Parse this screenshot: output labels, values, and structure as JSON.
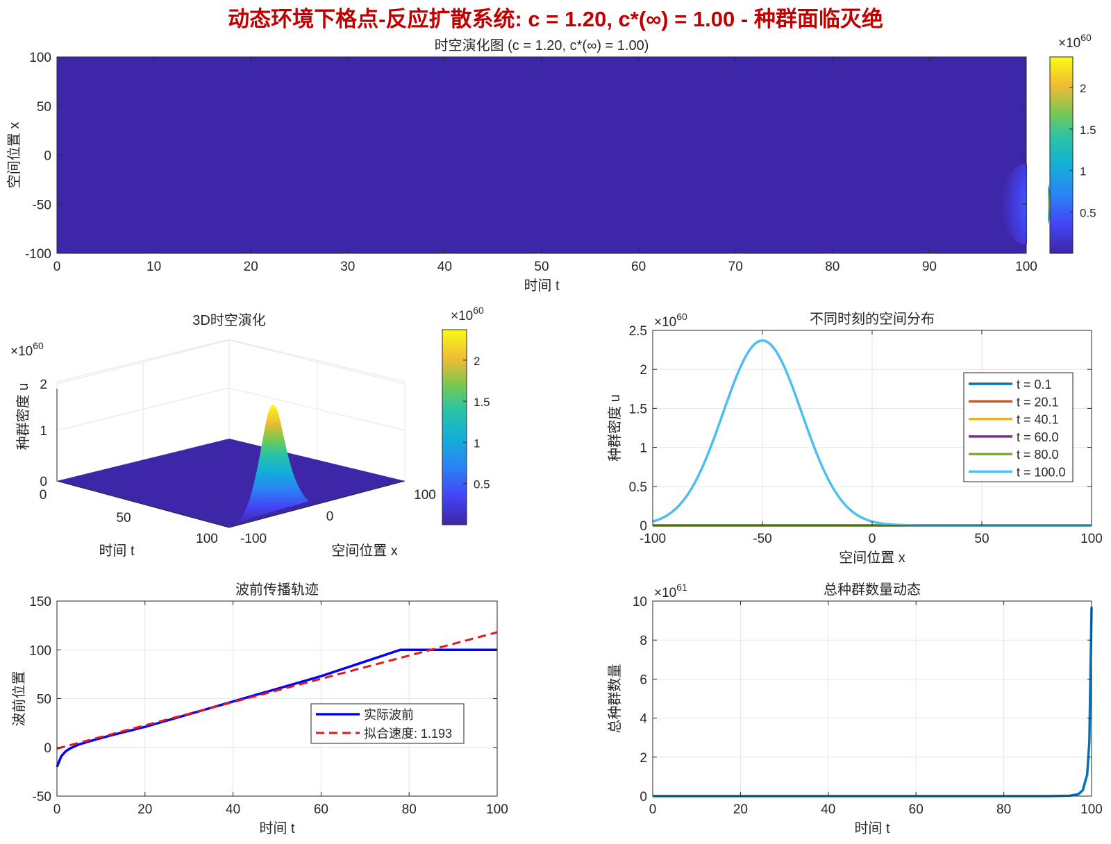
{
  "figure_title": "动态环境下格点-反应扩散系统: c = 1.20, c*(∞) = 1.00 - 种群面临灭绝",
  "colors": {
    "title": "#c00000",
    "parula_low": "#3e26a8",
    "parula_high": "#f9fb15",
    "front": "#0000ff",
    "fit": "#e8161b",
    "total": "#0072bd"
  },
  "chart_data": [
    {
      "type": "heatmap",
      "title": "时空演化图 (c = 1.20, c*(∞) = 1.00)",
      "xlabel": "时间 t",
      "ylabel": "空间位置 x",
      "xlim": [
        0,
        100
      ],
      "ylim": [
        -100,
        100
      ],
      "xticks": [
        "0",
        "10",
        "20",
        "30",
        "40",
        "50",
        "60",
        "70",
        "80",
        "90",
        "100"
      ],
      "yticks": [
        "100",
        "50",
        "0",
        "-50",
        "-100"
      ],
      "colorbar": {
        "exponent": "×10^60",
        "ticks": [
          "2",
          "1.5",
          "1",
          "0.5"
        ],
        "range": [
          0,
          2.37
        ]
      },
      "hotspot": {
        "t": 100,
        "x": -50,
        "value": 2.37
      }
    },
    {
      "type": "surface",
      "title": "3D时空演化",
      "xlabel": "时间 t",
      "ylabel": "空间位置 x",
      "zlabel": "种群密度 u",
      "zexponent": "×10^60",
      "tticks": [
        "0",
        "50",
        "100"
      ],
      "xticks": [
        "-100",
        "0",
        "100"
      ],
      "zticks": [
        "2",
        "1",
        "0"
      ],
      "colorbar": {
        "exponent": "×10^60",
        "ticks": [
          "2",
          "1.5",
          "1",
          "0.5"
        ]
      },
      "peak": {
        "t": 100,
        "x": -50,
        "u": 2.37
      }
    },
    {
      "type": "line",
      "title": "不同时刻的空间分布",
      "xlabel": "空间位置 x",
      "ylabel": "种群密度 u",
      "yexponent": "×10^60",
      "xlim": [
        -100,
        100
      ],
      "ylim": [
        0,
        2.5
      ],
      "xticks": [
        "-100",
        "-50",
        "0",
        "50",
        "100"
      ],
      "yticks": [
        "2.5",
        "2",
        "1.5",
        "1",
        "0.5",
        "0"
      ],
      "series": [
        {
          "name": "t = 0.1",
          "color": "#0072bd",
          "peak": 0,
          "center": -50,
          "sigma": 18
        },
        {
          "name": "t = 20.1",
          "color": "#d95319",
          "peak": 0,
          "center": -50,
          "sigma": 18
        },
        {
          "name": "t = 40.1",
          "color": "#edb120",
          "peak": 0,
          "center": -50,
          "sigma": 18
        },
        {
          "name": "t = 60.0",
          "color": "#7e2f8e",
          "peak": 0,
          "center": -50,
          "sigma": 18
        },
        {
          "name": "t = 80.0",
          "color": "#77ac30",
          "peak": 0,
          "center": -50,
          "sigma": 18
        },
        {
          "name": "t = 100.0",
          "color": "#4dbeee",
          "peak": 2.37,
          "center": -50,
          "sigma": 18
        }
      ],
      "legend": "top-right"
    },
    {
      "type": "line",
      "title": "波前传播轨迹",
      "xlabel": "时间 t",
      "ylabel": "波前位置",
      "xlim": [
        0,
        100
      ],
      "ylim": [
        -50,
        150
      ],
      "xticks": [
        "0",
        "20",
        "40",
        "60",
        "80",
        "100"
      ],
      "yticks": [
        "150",
        "100",
        "50",
        "0",
        "-50"
      ],
      "series": [
        {
          "name": "实际波前",
          "x": [
            0,
            1,
            2,
            3,
            5,
            8,
            12,
            20,
            40,
            60,
            78,
            100
          ],
          "y": [
            -20,
            -9,
            -4,
            -1,
            3,
            7,
            12,
            21,
            47,
            73,
            100,
            100
          ]
        },
        {
          "name": "拟合速度: 1.193",
          "x": [
            0,
            100
          ],
          "y": [
            -1.3,
            118
          ]
        }
      ],
      "legend": "bottom-right"
    },
    {
      "type": "line",
      "title": "总种群数量动态",
      "xlabel": "时间 t",
      "ylabel": "总种群数量",
      "yexponent": "×10^61",
      "xlim": [
        0,
        100
      ],
      "ylim": [
        0,
        10
      ],
      "xticks": [
        "0",
        "20",
        "40",
        "60",
        "80",
        "100"
      ],
      "yticks": [
        "10",
        "8",
        "6",
        "4",
        "2",
        "0"
      ],
      "series": [
        {
          "name": "total",
          "x": [
            0,
            90,
            95,
            97,
            98,
            99,
            99.5,
            100
          ],
          "y": [
            0,
            0,
            0.02,
            0.1,
            0.3,
            1.1,
            2.8,
            9.7
          ]
        }
      ]
    }
  ]
}
